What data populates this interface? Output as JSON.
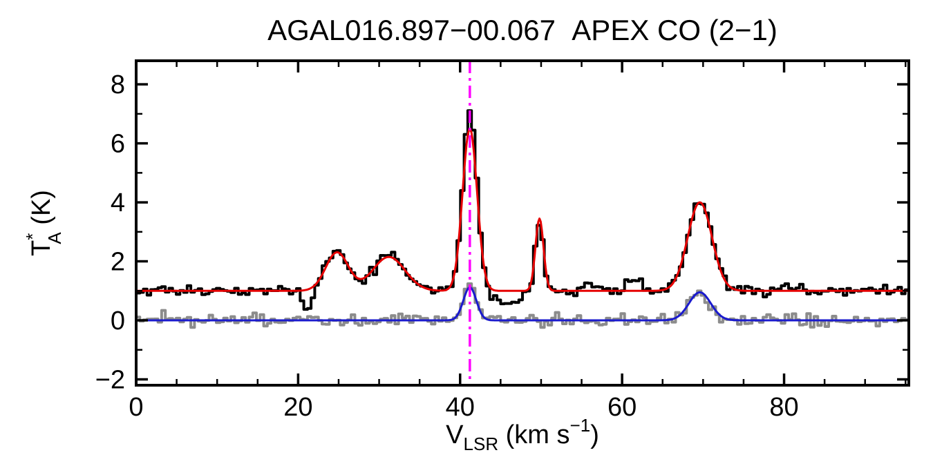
{
  "chart_data": {
    "type": "line",
    "title": "AGAL016.897−00.067  APEX CO (2−1)",
    "xlabel_parts": {
      "v": "V",
      "sub": "LSR",
      "mid": " (km s",
      "sup": "−1",
      "end": ")"
    },
    "ylabel_parts": {
      "t": "T",
      "sup": "*",
      "sub": "A",
      "rest": " (K)"
    },
    "xlim": [
      0,
      95.4
    ],
    "ylim": [
      -2.2,
      8.8
    ],
    "x_major_ticks": [
      0,
      20,
      40,
      60,
      80
    ],
    "x_minor_step": 5,
    "y_major_ticks": [
      -2,
      0,
      2,
      4,
      6,
      8
    ],
    "y_minor_step": 1,
    "channel_width": 0.45,
    "grid": false,
    "legend": "none",
    "colors": {
      "axis": "#000000",
      "spectrum": "#000000",
      "fit": "#e60000",
      "residual_spectrum": "#8c8c8c",
      "residual_fit": "#1a1acd",
      "vline": "#ff00ff"
    },
    "vline": {
      "x": 41.2,
      "style": "dash-dot",
      "label": "systemic velocity"
    },
    "series": [
      {
        "name": "observed-spectrum",
        "style": "histogram",
        "color_key": "spectrum",
        "line_width": 4,
        "baseline": 1.0,
        "noise_sigma": 0.09,
        "seed": 20417,
        "components": [
          {
            "center": 21.2,
            "amp": -0.65,
            "sigma": 0.5
          },
          {
            "center": 24.8,
            "amp": 1.3,
            "sigma": 1.4
          },
          {
            "center": 31.2,
            "amp": 1.15,
            "sigma": 2.0
          },
          {
            "center": 41.2,
            "amp": 6.2,
            "sigma": 0.85
          },
          {
            "center": 45.8,
            "amp": -0.5,
            "sigma": 1.4
          },
          {
            "center": 49.8,
            "amp": 2.3,
            "sigma": 0.5
          },
          {
            "center": 55.5,
            "amp": 0.25,
            "sigma": 0.7
          },
          {
            "center": 61.3,
            "amp": 0.45,
            "sigma": 1.0
          },
          {
            "center": 69.6,
            "amp": 3.05,
            "sigma": 1.5
          }
        ]
      },
      {
        "name": "gaussian-fit",
        "style": "curve",
        "color_key": "fit",
        "line_width": 3,
        "baseline": 1.0,
        "noise_sigma": 0,
        "seed": 1,
        "components": [
          {
            "center": 24.8,
            "amp": 1.3,
            "sigma": 1.4
          },
          {
            "center": 31.2,
            "amp": 1.15,
            "sigma": 2.0
          },
          {
            "center": 41.2,
            "amp": 5.5,
            "sigma": 0.9
          },
          {
            "center": 49.8,
            "amp": 2.45,
            "sigma": 0.5
          },
          {
            "center": 69.6,
            "amp": 3.0,
            "sigma": 1.5
          }
        ]
      },
      {
        "name": "residual-spectrum",
        "style": "histogram",
        "color_key": "residual_spectrum",
        "line_width": 4,
        "baseline": 0.0,
        "noise_sigma": 0.11,
        "seed": 90210,
        "components": [
          {
            "center": 41.2,
            "amp": 1.12,
            "sigma": 0.8
          },
          {
            "center": 69.6,
            "amp": 0.95,
            "sigma": 1.35
          }
        ]
      },
      {
        "name": "residual-fit",
        "style": "curve",
        "color_key": "residual_fit",
        "line_width": 3,
        "baseline": 0.0,
        "noise_sigma": 0,
        "seed": 1,
        "components": [
          {
            "center": 41.2,
            "amp": 1.12,
            "sigma": 0.8
          },
          {
            "center": 69.6,
            "amp": 0.95,
            "sigma": 1.35
          }
        ]
      }
    ]
  }
}
